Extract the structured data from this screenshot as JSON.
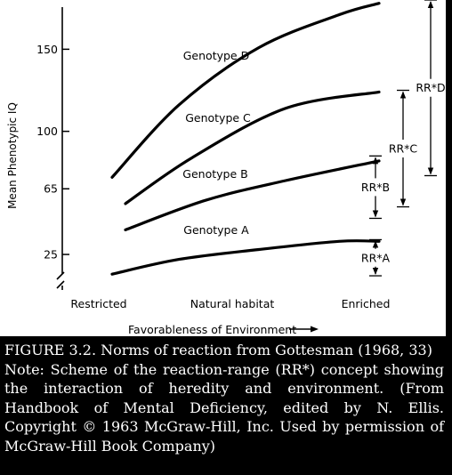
{
  "chart_data": {
    "type": "line",
    "ylabel": "Mean Phenotypic IQ",
    "xlabel": "Favorableness of Environment",
    "xlabel_arrow": "⟶",
    "categories": [
      "Restricted",
      "Natural habitat",
      "Enriched"
    ],
    "yticks": [
      25,
      65,
      100,
      150
    ],
    "ylim": [
      -5,
      190
    ],
    "series": [
      {
        "name": "Genotype A",
        "x": [
          0.05,
          0.3,
          0.6,
          0.9,
          1.05
        ],
        "values": [
          13,
          22,
          28,
          33,
          33
        ]
      },
      {
        "name": "Genotype B",
        "x": [
          0.1,
          0.4,
          0.7,
          1.05
        ],
        "values": [
          40,
          58,
          70,
          82
        ]
      },
      {
        "name": "Genotype C",
        "x": [
          0.1,
          0.35,
          0.7,
          1.05
        ],
        "values": [
          56,
          84,
          114,
          124
        ]
      },
      {
        "name": "Genotype D",
        "x": [
          0.05,
          0.3,
          0.6,
          0.9,
          1.05
        ],
        "values": [
          72,
          116,
          151,
          171,
          178
        ]
      }
    ],
    "ranges": [
      {
        "label": "RR*A",
        "low": 12,
        "high": 34
      },
      {
        "label": "RR*B",
        "low": 47,
        "high": 85
      },
      {
        "label": "RR*C",
        "low": 54,
        "high": 125
      },
      {
        "label": "RR*D",
        "low": 73,
        "high": 180
      }
    ]
  },
  "caption": {
    "line1": "FIGURE 3.2. Norms of reaction from Gottesman (1968, 33)",
    "line2": "Note: Scheme of the reaction-range (RR*) concept showing the interaction of heredity and environment. (From Handbook of Mental Deficiency, edited by N. Ellis. Copyright © 1963 McGraw-Hill, Inc. Used by permission of McGraw-Hill Book Company)"
  }
}
